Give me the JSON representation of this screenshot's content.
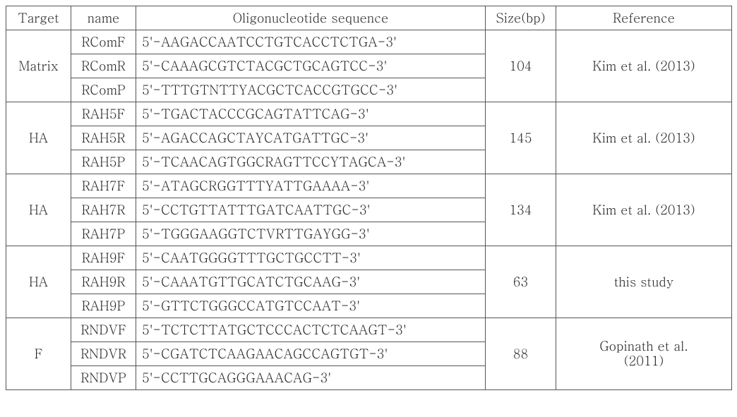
{
  "table": {
    "headers": {
      "target": "Target",
      "name": "name",
      "sequence": "Oligonucleotide sequence",
      "size": "Size(bp)",
      "reference": "Reference"
    },
    "groups": [
      {
        "target": "Matrix",
        "size": "104",
        "reference": "Kim et al. (2013)",
        "primers": [
          {
            "name": "RComF",
            "seq": "5'-AAGACCAATCCTGTCACCTCTGA-3'"
          },
          {
            "name": "RComR",
            "seq": "5'-CAAAGCGTCTACGCTGCAGTCC-3'"
          },
          {
            "name": "RComP",
            "seq": "5'-TTTGTNTTYACGCTCACCGTGCC-3'"
          }
        ]
      },
      {
        "target": "HA",
        "size": "145",
        "reference": "Kim et al. (2013)",
        "primers": [
          {
            "name": "RAH5F",
            "seq": "5'-TGACTACCCGCAGTATTCAG-3'"
          },
          {
            "name": "RAH5R",
            "seq": "5'-AGACCAGCTAYCATGATTGC-3'"
          },
          {
            "name": "RAH5P",
            "seq": "5'-TCAACAGTGGCRAGTTCCYTAGCA-3'"
          }
        ]
      },
      {
        "target": "HA",
        "size": "134",
        "reference": "Kim et al. (2013)",
        "primers": [
          {
            "name": "RAH7F",
            "seq": "5'-ATAGCRGGTTTYATTGAAAA-3'"
          },
          {
            "name": "RAH7R",
            "seq": "5'-CCTGTTATTTGATCAATTGC-3'"
          },
          {
            "name": "RAH7P",
            "seq": "5'-TGGGAAGGTCTVRTTGAYGG-3'"
          }
        ]
      },
      {
        "target": "HA",
        "size": "63",
        "reference": "this study",
        "primers": [
          {
            "name": "RAH9F",
            "seq": "5'-CAATGGGGTTTGCTGCCTT-3'"
          },
          {
            "name": "RAH9R",
            "seq": "5'-CAAATGTTGCATCTGCAAG-3'"
          },
          {
            "name": "RAH9P",
            "seq": "5'-GTTCTGGGCCATGTCCAAT-3'"
          }
        ]
      },
      {
        "target": "F",
        "size": "88",
        "reference_line1": "Gopinath et al.",
        "reference_line2": "(2011)",
        "primers": [
          {
            "name": "RNDVF",
            "seq": "5'-TCTCTTATGCTCCCACTCTCAAGT-3'"
          },
          {
            "name": "RNDVR",
            "seq": "5'-CGATCTCAAGAACAGCCAGTGT-3'"
          },
          {
            "name": "RNDVP",
            "seq": "5'-CCTTGCAGGGAAACAG-3'"
          }
        ]
      }
    ]
  }
}
